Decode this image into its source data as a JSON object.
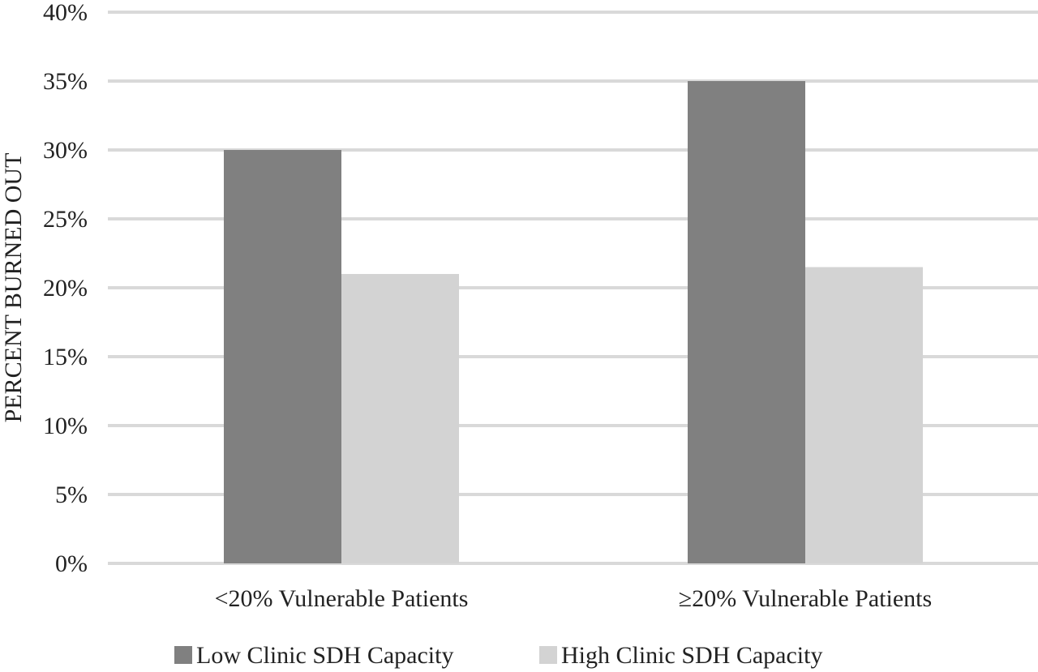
{
  "chart_data": {
    "type": "bar",
    "title": "",
    "xlabel": "",
    "ylabel": "PERCENT BURNED OUT",
    "categories": [
      "<20% Vulnerable Patients",
      "≥20% Vulnerable Patients"
    ],
    "series": [
      {
        "name": "Low Clinic SDH Capacity",
        "values": [
          30,
          35
        ],
        "color": "#808080"
      },
      {
        "name": "High Clinic SDH Capacity",
        "values": [
          21,
          21.5
        ],
        "color": "#d3d3d3"
      }
    ],
    "ylim": [
      0,
      40
    ],
    "yticks": [
      0,
      5,
      10,
      15,
      20,
      25,
      30,
      35,
      40
    ],
    "ytick_labels": [
      "0%",
      "5%",
      "10%",
      "15%",
      "20%",
      "25%",
      "30%",
      "35%",
      "40%"
    ],
    "grid": true,
    "gridline_color": "#d9d9d9",
    "legend_position": "bottom"
  }
}
